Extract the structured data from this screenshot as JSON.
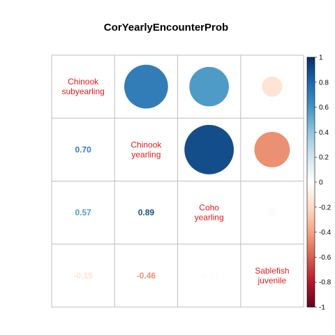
{
  "chart_data": {
    "type": "heatmap",
    "title": "CorYearlyEncounterProb",
    "variables": [
      [
        "Chinook",
        "subyearling"
      ],
      [
        "Chinook",
        "yearling"
      ],
      [
        "Coho",
        "yearling"
      ],
      [
        "Sablefish",
        "juvenile"
      ]
    ],
    "matrix": [
      [
        1.0,
        0.7,
        0.57,
        -0.15
      ],
      [
        0.7,
        1.0,
        0.89,
        -0.46
      ],
      [
        0.57,
        0.89,
        1.0,
        -0.03
      ],
      [
        -0.15,
        -0.46,
        -0.03,
        1.0
      ]
    ],
    "lower_labels": [
      {
        "row": 1,
        "col": 0,
        "text": "0.70"
      },
      {
        "row": 2,
        "col": 0,
        "text": "0.57"
      },
      {
        "row": 2,
        "col": 1,
        "text": "0.89"
      },
      {
        "row": 3,
        "col": 0,
        "text": "-0.15"
      },
      {
        "row": 3,
        "col": 1,
        "text": "-0.46"
      },
      {
        "row": 3,
        "col": 2,
        "text": "-0.03"
      }
    ],
    "upper_method": "circle",
    "lower_method": "number",
    "diag_label_color": "#e41a1c",
    "colorbar": {
      "range": [
        -1,
        1
      ],
      "ticks": [
        "1",
        "0.8",
        "0.6",
        "0.4",
        "0.2",
        "0",
        "-0.2",
        "-0.4",
        "-0.6",
        "-0.8",
        "-1"
      ],
      "low_color": "#67001f",
      "mid_color": "#ffffff",
      "high_color": "#053061"
    },
    "grid_color": "#bebebe"
  }
}
